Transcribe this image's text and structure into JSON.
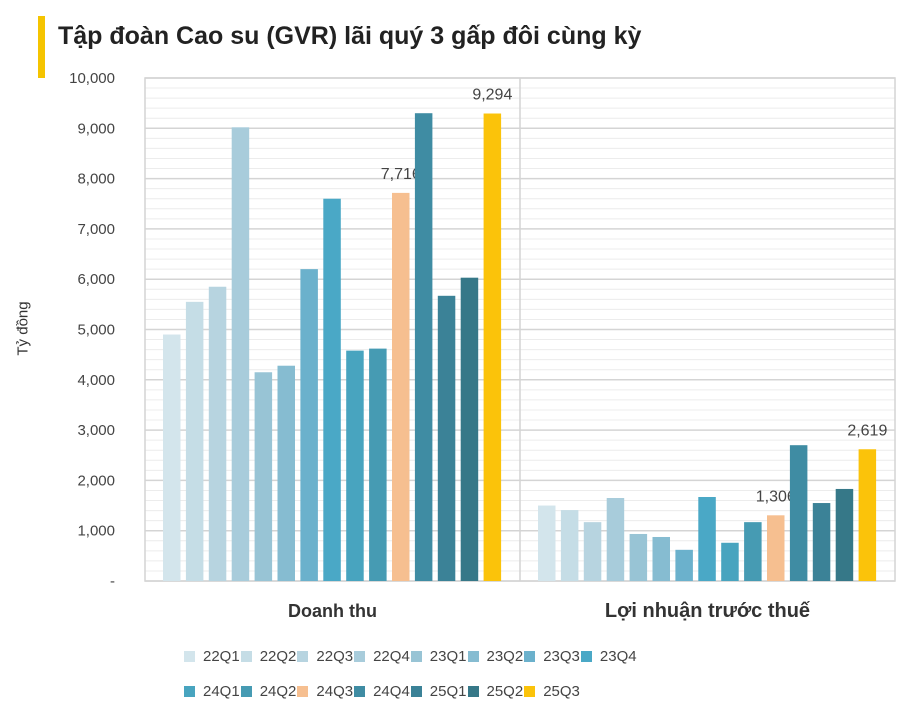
{
  "title": "Tập đoàn Cao su (GVR) lãi quý 3 gấp đôi cùng kỳ",
  "accent_color": "#f5c400",
  "chart_data": {
    "type": "bar",
    "title": "Tập đoàn Cao su (GVR) lãi quý 3 gấp đôi cùng kỳ",
    "ylabel": "Tỷ đồng",
    "ylim": [
      0,
      10000
    ],
    "yticks": [
      "-",
      "1,000",
      "2,000",
      "3,000",
      "4,000",
      "5,000",
      "6,000",
      "7,000",
      "8,000",
      "9,000",
      "10,000"
    ],
    "grid": true,
    "legend_position": "bottom",
    "categories": [
      "Doanh thu",
      "Lợi nhuận trước thuế"
    ],
    "series": [
      {
        "name": "22Q1",
        "color": "#d3e5ec",
        "values": [
          4900,
          1500
        ]
      },
      {
        "name": "22Q2",
        "color": "#c5dde6",
        "values": [
          5550,
          1410
        ]
      },
      {
        "name": "22Q3",
        "color": "#b7d4e0",
        "values": [
          5850,
          1170
        ]
      },
      {
        "name": "22Q4",
        "color": "#a8ccdb",
        "values": [
          9020,
          1650
        ]
      },
      {
        "name": "23Q1",
        "color": "#98c4d5",
        "values": [
          4150,
          935
        ]
      },
      {
        "name": "23Q2",
        "color": "#86bcd1",
        "values": [
          4280,
          875
        ]
      },
      {
        "name": "23Q3",
        "color": "#6bb1cc",
        "values": [
          6200,
          620
        ]
      },
      {
        "name": "23Q4",
        "color": "#4aa8c6",
        "values": [
          7600,
          1670
        ]
      },
      {
        "name": "24Q1",
        "color": "#48a4bf",
        "values": [
          4580,
          760
        ]
      },
      {
        "name": "24Q2",
        "color": "#469bb3",
        "values": [
          4620,
          1170
        ]
      },
      {
        "name": "24Q3",
        "color": "#f6bf90",
        "values": [
          7716,
          1306
        ]
      },
      {
        "name": "24Q4",
        "color": "#3f8ca3",
        "values": [
          9300,
          2700
        ]
      },
      {
        "name": "25Q1",
        "color": "#3b8297",
        "values": [
          5670,
          1550
        ]
      },
      {
        "name": "25Q2",
        "color": "#367888",
        "values": [
          6030,
          1830
        ]
      },
      {
        "name": "25Q3",
        "color": "#fbc30a",
        "values": [
          9294,
          2619
        ]
      }
    ],
    "data_labels": [
      {
        "series": "24Q3",
        "category": "Doanh thu",
        "text": "7,716"
      },
      {
        "series": "25Q3",
        "category": "Doanh thu",
        "text": "9,294"
      },
      {
        "series": "24Q3",
        "category": "Lợi nhuận trước thuế",
        "text": "1,306"
      },
      {
        "series": "25Q3",
        "category": "Lợi nhuận trước thuế",
        "text": "2,619"
      }
    ]
  }
}
